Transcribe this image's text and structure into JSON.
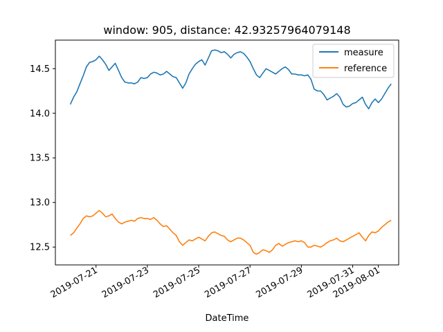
{
  "chart_data": {
    "type": "line",
    "title": "window: 905, distance: 42.93257964079148",
    "xlabel": "DateTime",
    "ylabel": "",
    "x_ticks": [
      "2019-07-21",
      "2019-07-23",
      "2019-07-25",
      "2019-07-27",
      "2019-07-29",
      "2019-07-31",
      "2019-08-01"
    ],
    "y_ticks": [
      "12.5",
      "13.0",
      "13.5",
      "14.0",
      "14.5"
    ],
    "y_tick_values": [
      12.5,
      13.0,
      13.5,
      14.0,
      14.5
    ],
    "xlim": [
      "2019-07-19T10:00",
      "2019-08-01T19:00"
    ],
    "ylim": [
      12.3,
      14.82
    ],
    "grid": false,
    "legend_position": "top-right",
    "series": [
      {
        "name": "measure",
        "color": "#1f77b4",
        "points": [
          [
            "2019-07-20T00:00",
            14.1
          ],
          [
            "2019-07-20T03:00",
            14.18
          ],
          [
            "2019-07-20T06:00",
            14.24
          ],
          [
            "2019-07-20T09:00",
            14.33
          ],
          [
            "2019-07-20T12:00",
            14.42
          ],
          [
            "2019-07-20T15:00",
            14.52
          ],
          [
            "2019-07-20T18:00",
            14.57
          ],
          [
            "2019-07-20T21:00",
            14.58
          ],
          [
            "2019-07-21T00:00",
            14.6
          ],
          [
            "2019-07-21T03:00",
            14.64
          ],
          [
            "2019-07-21T06:00",
            14.6
          ],
          [
            "2019-07-21T09:00",
            14.55
          ],
          [
            "2019-07-21T12:00",
            14.48
          ],
          [
            "2019-07-21T15:00",
            14.52
          ],
          [
            "2019-07-21T18:00",
            14.56
          ],
          [
            "2019-07-21T21:00",
            14.48
          ],
          [
            "2019-07-22T00:00",
            14.4
          ],
          [
            "2019-07-22T03:00",
            14.35
          ],
          [
            "2019-07-22T06:00",
            14.34
          ],
          [
            "2019-07-22T09:00",
            14.34
          ],
          [
            "2019-07-22T12:00",
            14.33
          ],
          [
            "2019-07-22T15:00",
            14.35
          ],
          [
            "2019-07-22T18:00",
            14.4
          ],
          [
            "2019-07-22T21:00",
            14.39
          ],
          [
            "2019-07-23T00:00",
            14.4
          ],
          [
            "2019-07-23T03:00",
            14.44
          ],
          [
            "2019-07-23T06:00",
            14.46
          ],
          [
            "2019-07-23T09:00",
            14.45
          ],
          [
            "2019-07-23T12:00",
            14.43
          ],
          [
            "2019-07-23T15:00",
            14.44
          ],
          [
            "2019-07-23T18:00",
            14.47
          ],
          [
            "2019-07-23T21:00",
            14.44
          ],
          [
            "2019-07-24T00:00",
            14.41
          ],
          [
            "2019-07-24T03:00",
            14.4
          ],
          [
            "2019-07-24T06:00",
            14.34
          ],
          [
            "2019-07-24T09:00",
            14.28
          ],
          [
            "2019-07-24T12:00",
            14.34
          ],
          [
            "2019-07-24T15:00",
            14.44
          ],
          [
            "2019-07-24T18:00",
            14.5
          ],
          [
            "2019-07-24T21:00",
            14.55
          ],
          [
            "2019-07-25T00:00",
            14.58
          ],
          [
            "2019-07-25T03:00",
            14.6
          ],
          [
            "2019-07-25T06:00",
            14.54
          ],
          [
            "2019-07-25T09:00",
            14.62
          ],
          [
            "2019-07-25T12:00",
            14.7
          ],
          [
            "2019-07-25T15:00",
            14.71
          ],
          [
            "2019-07-25T18:00",
            14.7
          ],
          [
            "2019-07-25T21:00",
            14.68
          ],
          [
            "2019-07-26T00:00",
            14.69
          ],
          [
            "2019-07-26T03:00",
            14.66
          ],
          [
            "2019-07-26T06:00",
            14.62
          ],
          [
            "2019-07-26T09:00",
            14.66
          ],
          [
            "2019-07-26T12:00",
            14.68
          ],
          [
            "2019-07-26T15:00",
            14.69
          ],
          [
            "2019-07-26T18:00",
            14.67
          ],
          [
            "2019-07-26T21:00",
            14.63
          ],
          [
            "2019-07-27T00:00",
            14.58
          ],
          [
            "2019-07-27T03:00",
            14.5
          ],
          [
            "2019-07-27T06:00",
            14.43
          ],
          [
            "2019-07-27T09:00",
            14.4
          ],
          [
            "2019-07-27T12:00",
            14.45
          ],
          [
            "2019-07-27T15:00",
            14.5
          ],
          [
            "2019-07-27T18:00",
            14.48
          ],
          [
            "2019-07-27T21:00",
            14.46
          ],
          [
            "2019-07-28T00:00",
            14.44
          ],
          [
            "2019-07-28T03:00",
            14.47
          ],
          [
            "2019-07-28T06:00",
            14.5
          ],
          [
            "2019-07-28T09:00",
            14.52
          ],
          [
            "2019-07-28T12:00",
            14.49
          ],
          [
            "2019-07-28T15:00",
            14.44
          ],
          [
            "2019-07-28T18:00",
            14.44
          ],
          [
            "2019-07-28T21:00",
            14.43
          ],
          [
            "2019-07-29T00:00",
            14.43
          ],
          [
            "2019-07-29T03:00",
            14.42
          ],
          [
            "2019-07-29T06:00",
            14.43
          ],
          [
            "2019-07-29T09:00",
            14.38
          ],
          [
            "2019-07-29T12:00",
            14.27
          ],
          [
            "2019-07-29T15:00",
            14.25
          ],
          [
            "2019-07-29T18:00",
            14.25
          ],
          [
            "2019-07-29T21:00",
            14.21
          ],
          [
            "2019-07-30T00:00",
            14.15
          ],
          [
            "2019-07-30T03:00",
            14.17
          ],
          [
            "2019-07-30T06:00",
            14.19
          ],
          [
            "2019-07-30T09:00",
            14.22
          ],
          [
            "2019-07-30T12:00",
            14.18
          ],
          [
            "2019-07-30T15:00",
            14.1
          ],
          [
            "2019-07-30T18:00",
            14.07
          ],
          [
            "2019-07-30T21:00",
            14.08
          ],
          [
            "2019-07-31T00:00",
            14.11
          ],
          [
            "2019-07-31T03:00",
            14.12
          ],
          [
            "2019-07-31T06:00",
            14.15
          ],
          [
            "2019-07-31T09:00",
            14.18
          ],
          [
            "2019-07-31T12:00",
            14.1
          ],
          [
            "2019-07-31T15:00",
            14.05
          ],
          [
            "2019-07-31T18:00",
            14.12
          ],
          [
            "2019-07-31T21:00",
            14.16
          ],
          [
            "2019-08-01T00:00",
            14.12
          ],
          [
            "2019-08-01T03:00",
            14.16
          ],
          [
            "2019-08-01T06:00",
            14.22
          ],
          [
            "2019-08-01T09:00",
            14.28
          ],
          [
            "2019-08-01T12:00",
            14.33
          ]
        ]
      },
      {
        "name": "reference",
        "color": "#ff7f0e",
        "points": [
          [
            "2019-07-20T00:00",
            12.63
          ],
          [
            "2019-07-20T03:00",
            12.66
          ],
          [
            "2019-07-20T06:00",
            12.71
          ],
          [
            "2019-07-20T09:00",
            12.76
          ],
          [
            "2019-07-20T12:00",
            12.82
          ],
          [
            "2019-07-20T15:00",
            12.85
          ],
          [
            "2019-07-20T18:00",
            12.84
          ],
          [
            "2019-07-20T21:00",
            12.85
          ],
          [
            "2019-07-21T00:00",
            12.88
          ],
          [
            "2019-07-21T03:00",
            12.91
          ],
          [
            "2019-07-21T06:00",
            12.88
          ],
          [
            "2019-07-21T09:00",
            12.84
          ],
          [
            "2019-07-21T12:00",
            12.85
          ],
          [
            "2019-07-21T15:00",
            12.87
          ],
          [
            "2019-07-21T18:00",
            12.82
          ],
          [
            "2019-07-21T21:00",
            12.78
          ],
          [
            "2019-07-22T00:00",
            12.76
          ],
          [
            "2019-07-22T03:00",
            12.78
          ],
          [
            "2019-07-22T06:00",
            12.79
          ],
          [
            "2019-07-22T09:00",
            12.8
          ],
          [
            "2019-07-22T12:00",
            12.79
          ],
          [
            "2019-07-22T15:00",
            12.82
          ],
          [
            "2019-07-22T18:00",
            12.83
          ],
          [
            "2019-07-22T21:00",
            12.82
          ],
          [
            "2019-07-23T00:00",
            12.82
          ],
          [
            "2019-07-23T03:00",
            12.81
          ],
          [
            "2019-07-23T06:00",
            12.83
          ],
          [
            "2019-07-23T09:00",
            12.8
          ],
          [
            "2019-07-23T12:00",
            12.76
          ],
          [
            "2019-07-23T15:00",
            12.73
          ],
          [
            "2019-07-23T18:00",
            12.74
          ],
          [
            "2019-07-23T21:00",
            12.7
          ],
          [
            "2019-07-24T00:00",
            12.66
          ],
          [
            "2019-07-24T03:00",
            12.63
          ],
          [
            "2019-07-24T06:00",
            12.56
          ],
          [
            "2019-07-24T09:00",
            12.52
          ],
          [
            "2019-07-24T12:00",
            12.55
          ],
          [
            "2019-07-24T15:00",
            12.58
          ],
          [
            "2019-07-24T18:00",
            12.57
          ],
          [
            "2019-07-24T21:00",
            12.59
          ],
          [
            "2019-07-25T00:00",
            12.61
          ],
          [
            "2019-07-25T03:00",
            12.59
          ],
          [
            "2019-07-25T06:00",
            12.57
          ],
          [
            "2019-07-25T09:00",
            12.62
          ],
          [
            "2019-07-25T12:00",
            12.66
          ],
          [
            "2019-07-25T15:00",
            12.67
          ],
          [
            "2019-07-25T18:00",
            12.65
          ],
          [
            "2019-07-25T21:00",
            12.63
          ],
          [
            "2019-07-26T00:00",
            12.62
          ],
          [
            "2019-07-26T03:00",
            12.58
          ],
          [
            "2019-07-26T06:00",
            12.56
          ],
          [
            "2019-07-26T09:00",
            12.58
          ],
          [
            "2019-07-26T12:00",
            12.6
          ],
          [
            "2019-07-26T15:00",
            12.6
          ],
          [
            "2019-07-26T18:00",
            12.58
          ],
          [
            "2019-07-26T21:00",
            12.55
          ],
          [
            "2019-07-27T00:00",
            12.52
          ],
          [
            "2019-07-27T03:00",
            12.44
          ],
          [
            "2019-07-27T06:00",
            12.42
          ],
          [
            "2019-07-27T09:00",
            12.44
          ],
          [
            "2019-07-27T12:00",
            12.47
          ],
          [
            "2019-07-27T15:00",
            12.46
          ],
          [
            "2019-07-27T18:00",
            12.44
          ],
          [
            "2019-07-27T21:00",
            12.47
          ],
          [
            "2019-07-28T00:00",
            12.52
          ],
          [
            "2019-07-28T03:00",
            12.54
          ],
          [
            "2019-07-28T06:00",
            12.51
          ],
          [
            "2019-07-28T09:00",
            12.53
          ],
          [
            "2019-07-28T12:00",
            12.55
          ],
          [
            "2019-07-28T15:00",
            12.56
          ],
          [
            "2019-07-28T18:00",
            12.57
          ],
          [
            "2019-07-28T21:00",
            12.56
          ],
          [
            "2019-07-29T00:00",
            12.57
          ],
          [
            "2019-07-29T03:00",
            12.55
          ],
          [
            "2019-07-29T06:00",
            12.5
          ],
          [
            "2019-07-29T09:00",
            12.5
          ],
          [
            "2019-07-29T12:00",
            12.52
          ],
          [
            "2019-07-29T15:00",
            12.51
          ],
          [
            "2019-07-29T18:00",
            12.5
          ],
          [
            "2019-07-29T21:00",
            12.52
          ],
          [
            "2019-07-30T00:00",
            12.55
          ],
          [
            "2019-07-30T03:00",
            12.57
          ],
          [
            "2019-07-30T06:00",
            12.58
          ],
          [
            "2019-07-30T09:00",
            12.6
          ],
          [
            "2019-07-30T12:00",
            12.57
          ],
          [
            "2019-07-30T15:00",
            12.56
          ],
          [
            "2019-07-30T18:00",
            12.58
          ],
          [
            "2019-07-30T21:00",
            12.6
          ],
          [
            "2019-07-31T00:00",
            12.62
          ],
          [
            "2019-07-31T03:00",
            12.64
          ],
          [
            "2019-07-31T06:00",
            12.66
          ],
          [
            "2019-07-31T09:00",
            12.61
          ],
          [
            "2019-07-31T12:00",
            12.57
          ],
          [
            "2019-07-31T15:00",
            12.63
          ],
          [
            "2019-07-31T18:00",
            12.67
          ],
          [
            "2019-07-31T21:00",
            12.66
          ],
          [
            "2019-08-01T00:00",
            12.68
          ],
          [
            "2019-08-01T03:00",
            12.72
          ],
          [
            "2019-08-01T06:00",
            12.75
          ],
          [
            "2019-08-01T09:00",
            12.78
          ],
          [
            "2019-08-01T12:00",
            12.8
          ]
        ]
      }
    ]
  }
}
